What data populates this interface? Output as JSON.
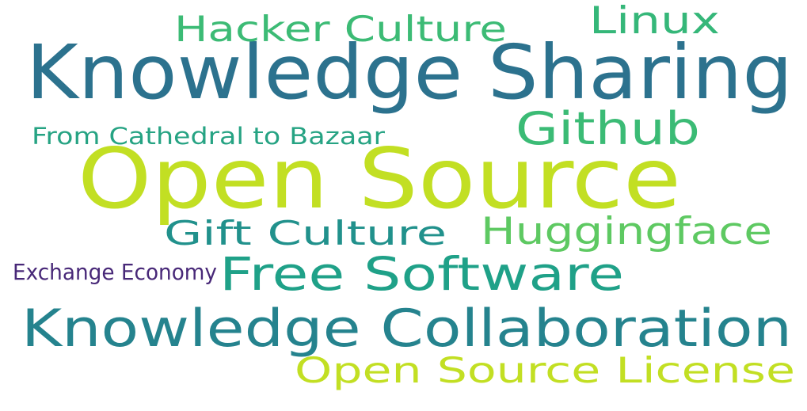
{
  "words": [
    {
      "id": "open-source",
      "text": "Open Source",
      "color": "#c2df23"
    },
    {
      "id": "knowledge-sharing",
      "text": "Knowledge Sharing",
      "color": "#2c728e"
    },
    {
      "id": "knowledge-collaboration",
      "text": "Knowledge Collaboration",
      "color": "#25838e"
    },
    {
      "id": "free-software",
      "text": "Free Software",
      "color": "#1fa188"
    },
    {
      "id": "open-source-license",
      "text": "Open Source License",
      "color": "#c2df23"
    },
    {
      "id": "github",
      "text": "Github",
      "color": "#3bbb75"
    },
    {
      "id": "huggingface",
      "text": "Huggingface",
      "color": "#5ec962"
    },
    {
      "id": "gift-culture",
      "text": "Gift Culture",
      "color": "#21918c"
    },
    {
      "id": "hacker-culture",
      "text": "Hacker Culture",
      "color": "#3cbb75"
    },
    {
      "id": "linux",
      "text": "Linux",
      "color": "#35b779"
    },
    {
      "id": "from-cathedral-to-bazaar",
      "text": "From Cathedral to Bazaar",
      "color": "#26a383"
    },
    {
      "id": "exchange-economy",
      "text": "Exchange Economy",
      "color": "#482878"
    }
  ]
}
